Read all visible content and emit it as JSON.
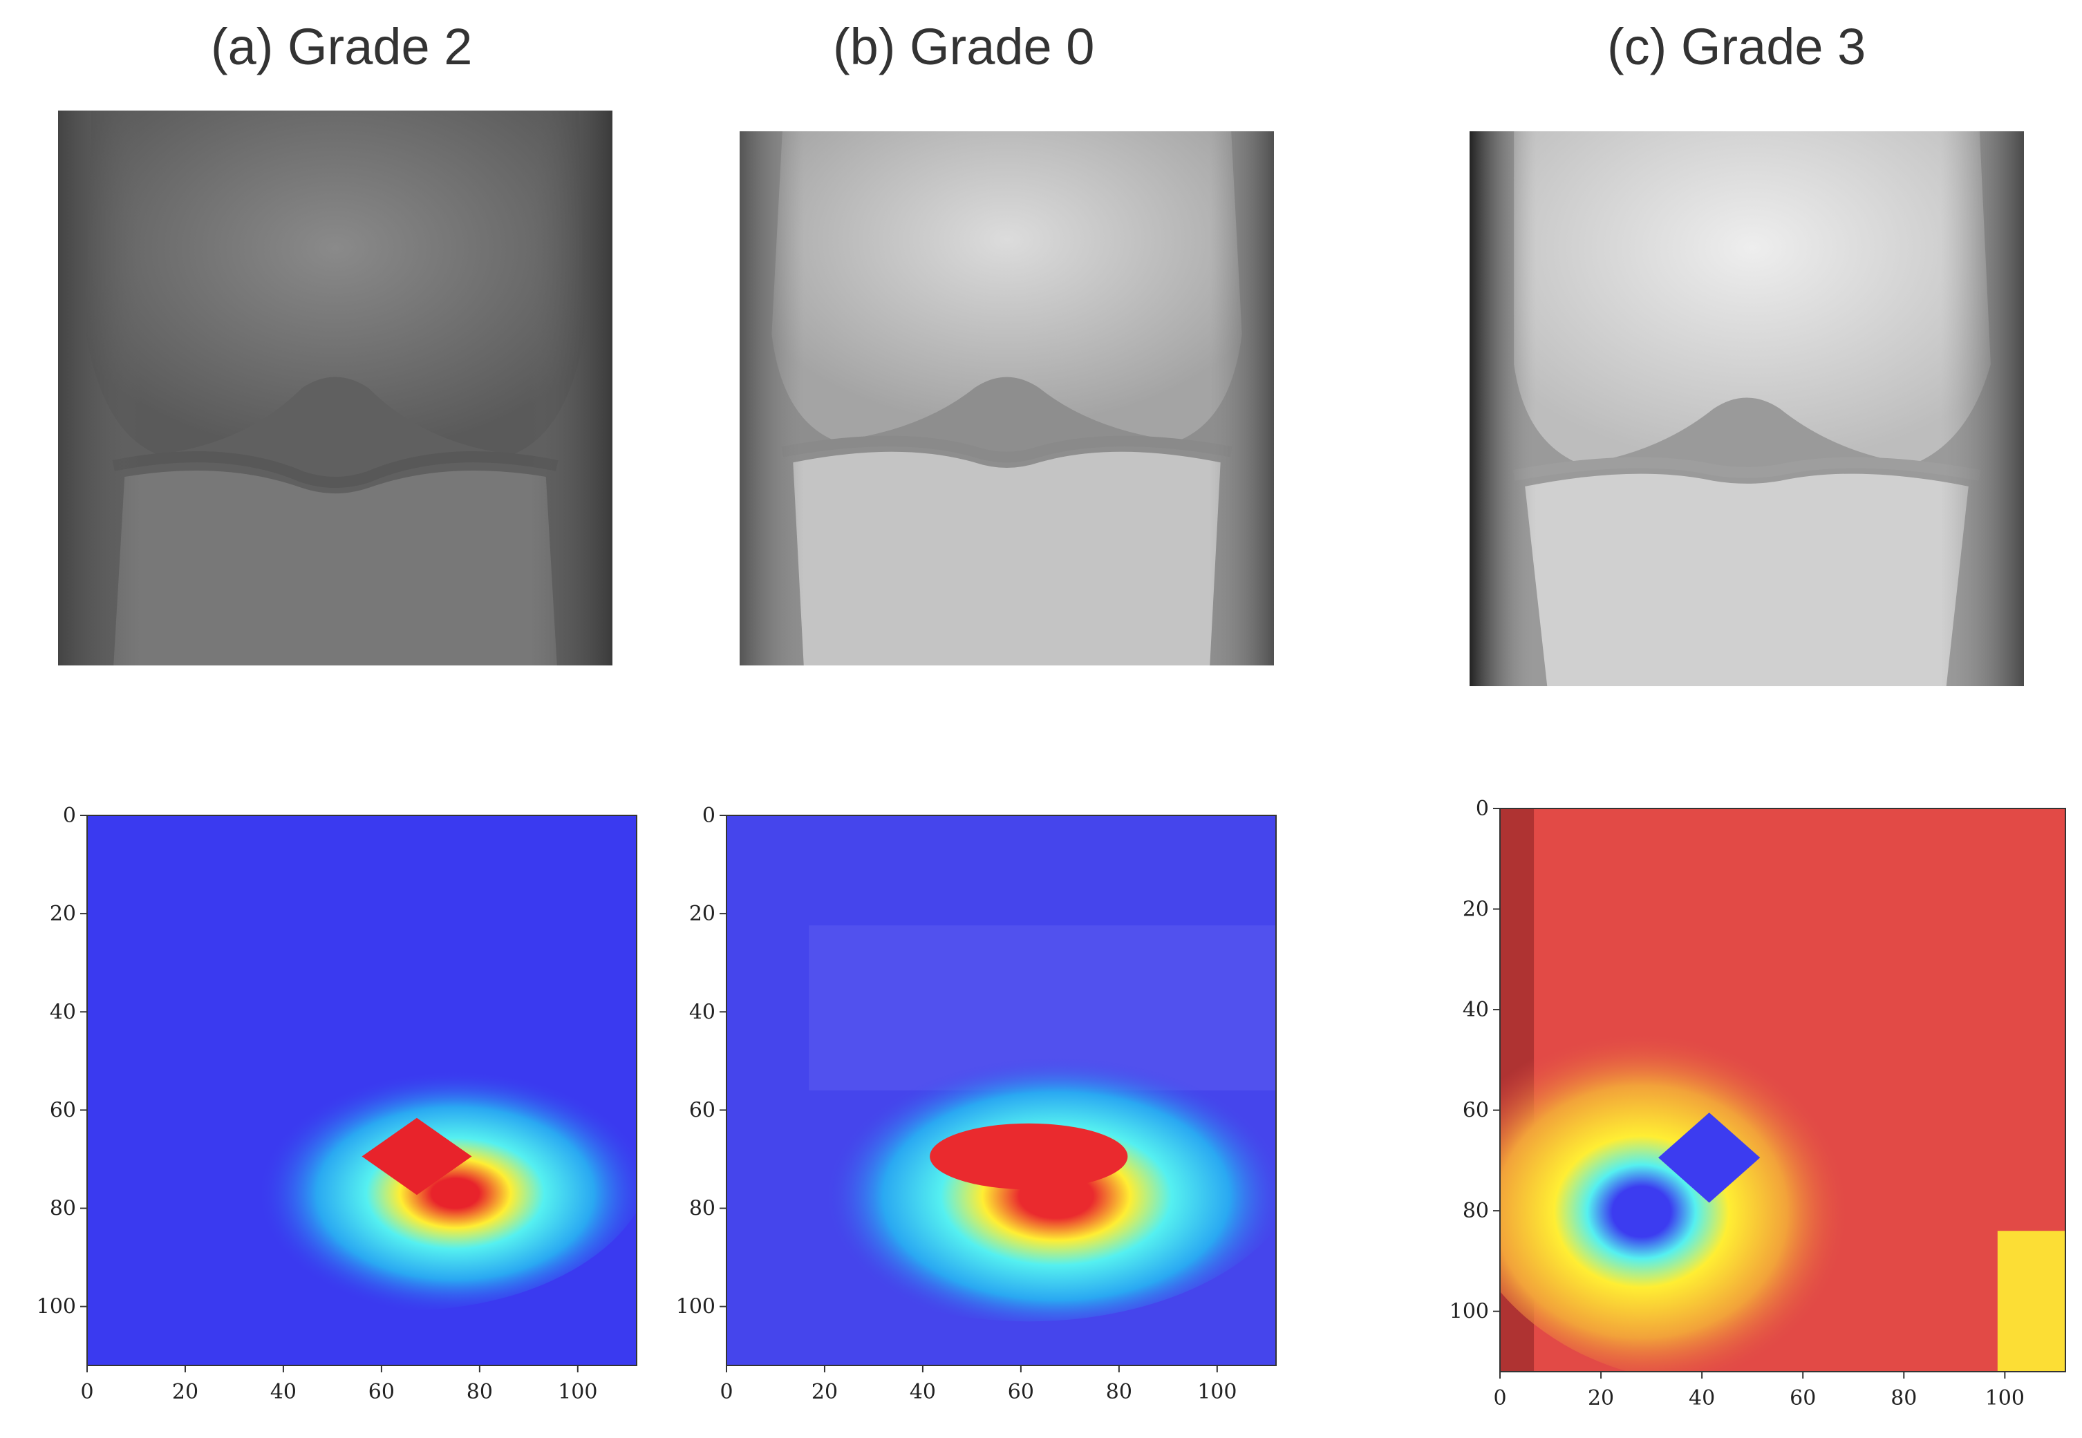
{
  "panels": [
    {
      "title": "(a) Grade 2",
      "grade": 2,
      "xray_tone": "#6c6c6c",
      "heatmap": {
        "colormap": "jet",
        "background": "#3a3af0",
        "hot_center": [
          68,
          70
        ],
        "center_color": "#e8232b"
      },
      "x_ticks": [
        "0",
        "20",
        "40",
        "60",
        "80",
        "100"
      ],
      "y_ticks": [
        "0",
        "20",
        "40",
        "60",
        "80",
        "100"
      ]
    },
    {
      "title": "(b) Grade 0",
      "grade": 0,
      "xray_tone": "#b8b8b8",
      "heatmap": {
        "colormap": "jet",
        "background": "#4545ec",
        "hot_center": [
          62,
          70
        ],
        "center_color": "#ea2a2e"
      },
      "x_ticks": [
        "0",
        "20",
        "40",
        "60",
        "80",
        "100"
      ],
      "y_ticks": [
        "0",
        "20",
        "40",
        "60",
        "80",
        "100"
      ]
    },
    {
      "title": "(c) Grade 3",
      "grade": 3,
      "xray_tone": "#d6d6d6",
      "heatmap": {
        "colormap": "jet",
        "background": "#e24a46",
        "hot_center": [
          41,
          70
        ],
        "center_color": "#3c3cf0"
      },
      "x_ticks": [
        "0",
        "20",
        "40",
        "60",
        "80",
        "100"
      ],
      "y_ticks": [
        "0",
        "20",
        "40",
        "60",
        "80",
        "100"
      ]
    }
  ]
}
